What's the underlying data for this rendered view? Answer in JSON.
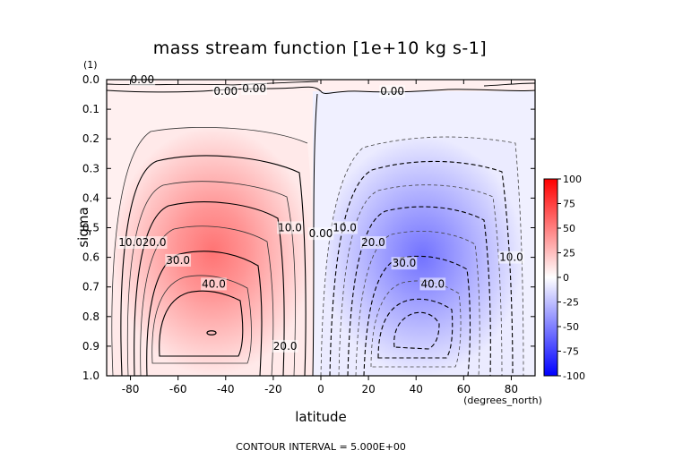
{
  "chart_data": {
    "type": "heatmap",
    "title": "mass stream function [1e+10 kg s-1]",
    "xlabel": "latitude",
    "ylabel": "sigma",
    "x_unit": "(degrees_north)",
    "y_unit": "(1)",
    "xlim": [
      -90,
      90
    ],
    "ylim": [
      1.0,
      0.0
    ],
    "x_ticks": [
      "-80",
      "-60",
      "-40",
      "-20",
      "0",
      "20",
      "40",
      "60",
      "80"
    ],
    "y_ticks": [
      "0.0",
      "0.1",
      "0.2",
      "0.3",
      "0.4",
      "0.5",
      "0.6",
      "0.7",
      "0.8",
      "0.9",
      "1.0"
    ],
    "contour_interval_text": "CONTOUR INTERVAL = 5.000E+00",
    "colorbar": {
      "ticks": [
        "100",
        "75",
        "50",
        "25",
        "0",
        "-25",
        "-50",
        "-75",
        "-100"
      ],
      "min": -100,
      "max": 100,
      "colors": {
        "positive": "#ff0000",
        "zero": "#ffffff",
        "negative": "#0000ff"
      }
    },
    "cells": {
      "south_max": {
        "lat": -45,
        "sigma": 0.85,
        "value": 45
      },
      "north_min": {
        "lat": 40,
        "sigma": 0.85,
        "value": -45
      }
    },
    "contour_labels": [
      {
        "text": "0.00",
        "lat": -75,
        "sigma": 0.0
      },
      {
        "text": "0.00",
        "lat": -40,
        "sigma": 0.04
      },
      {
        "text": "0.00",
        "lat": -28,
        "sigma": 0.03
      },
      {
        "text": "0.00",
        "lat": 30,
        "sigma": 0.04
      },
      {
        "text": "0.00",
        "lat": 0,
        "sigma": 0.52
      },
      {
        "text": "10.0",
        "lat": -80,
        "sigma": 0.55
      },
      {
        "text": "20.0",
        "lat": -70,
        "sigma": 0.55
      },
      {
        "text": "30.0",
        "lat": -60,
        "sigma": 0.61
      },
      {
        "text": "40.0",
        "lat": -45,
        "sigma": 0.69
      },
      {
        "text": "10.0",
        "lat": -13,
        "sigma": 0.5
      },
      {
        "text": "20.0",
        "lat": -15,
        "sigma": 0.9
      },
      {
        "text": "10.0",
        "lat": 10,
        "sigma": 0.5
      },
      {
        "text": "20.0",
        "lat": 22,
        "sigma": 0.55
      },
      {
        "text": "30.0",
        "lat": 35,
        "sigma": 0.62
      },
      {
        "text": "40.0",
        "lat": 47,
        "sigma": 0.69
      },
      {
        "text": "10.0",
        "lat": 80,
        "sigma": 0.6
      }
    ]
  }
}
